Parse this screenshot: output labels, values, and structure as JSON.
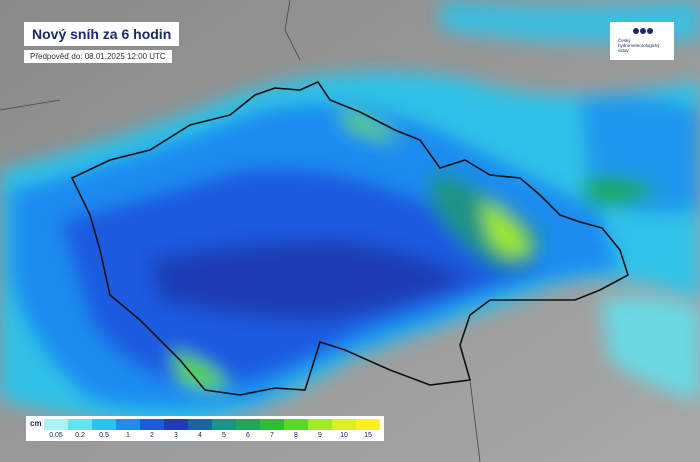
{
  "header": {
    "title": "Nový sníh za 6 hodin",
    "subtitle": "Předpověď do: 08.01.2025 12:00 UTC",
    "logo": "Český hydrometeorologický ústav"
  },
  "legend": {
    "unit": "cm",
    "items": [
      {
        "label": 0.05,
        "color": "#a8f4f4"
      },
      {
        "label": 0.2,
        "color": "#5ce6f2"
      },
      {
        "label": 0.5,
        "color": "#24c6f0"
      },
      {
        "label": 1,
        "color": "#1e8cf0"
      },
      {
        "label": 2,
        "color": "#1e5ae0"
      },
      {
        "label": 3,
        "color": "#1e3cb4"
      },
      {
        "label": 4,
        "color": "#1a64a0"
      },
      {
        "label": 5,
        "color": "#1a9484"
      },
      {
        "label": 6,
        "color": "#1ea85a"
      },
      {
        "label": 7,
        "color": "#2ebe34"
      },
      {
        "label": 8,
        "color": "#5ed820"
      },
      {
        "label": 9,
        "color": "#a0ec20"
      },
      {
        "label": 10,
        "color": "#dcf020"
      },
      {
        "label": 15,
        "color": "#fff020"
      }
    ]
  }
}
